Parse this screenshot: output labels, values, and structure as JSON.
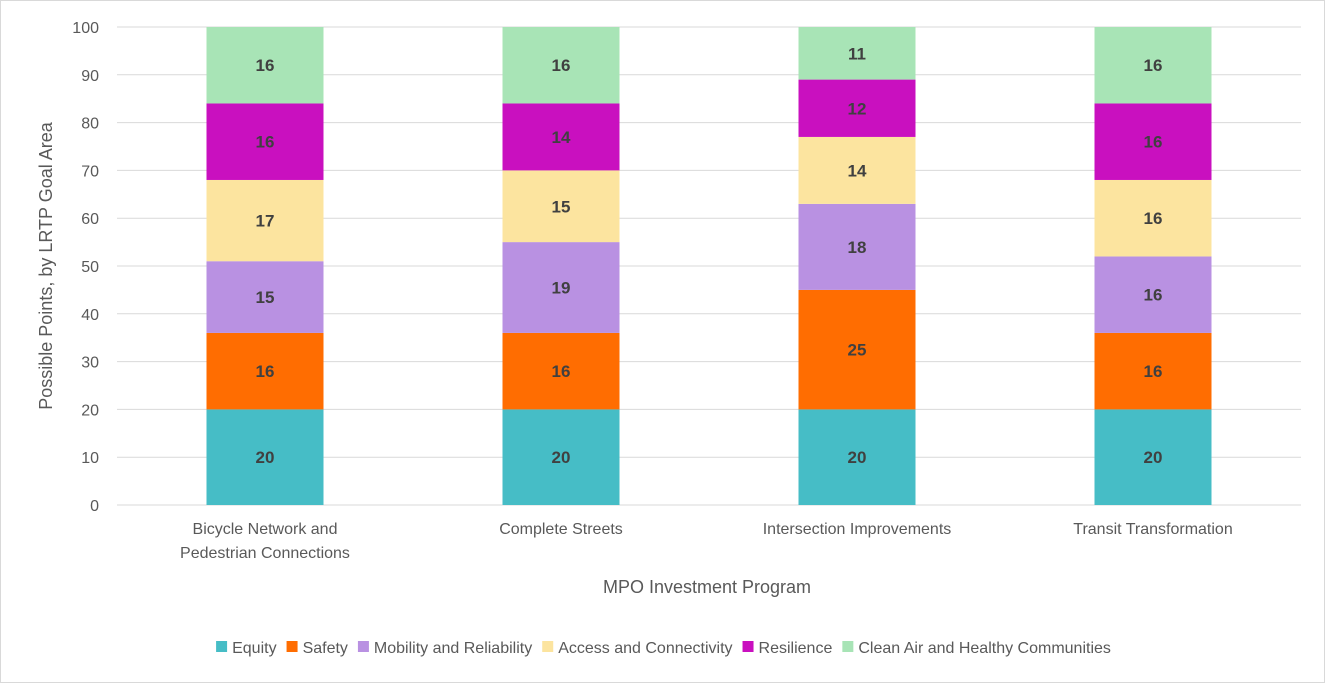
{
  "chart_data": {
    "type": "stacked-bar",
    "title": "",
    "xlabel": "MPO Investment Program",
    "ylabel": "Possible Points, by LRTP Goal Area",
    "ylim": [
      0,
      100
    ],
    "yticks": [
      0,
      10,
      20,
      30,
      40,
      50,
      60,
      70,
      80,
      90,
      100
    ],
    "grid": true,
    "legend_position": "bottom",
    "categories": [
      [
        "Bicycle Network and",
        "Pedestrian Connections"
      ],
      [
        "Complete Streets"
      ],
      [
        "Intersection Improvements"
      ],
      [
        "Transit Transformation"
      ]
    ],
    "series": [
      {
        "name": "Equity",
        "color": "#46BDC6",
        "values": [
          20,
          20,
          20,
          20
        ]
      },
      {
        "name": "Safety",
        "color": "#FF6D01",
        "values": [
          16,
          16,
          25,
          16
        ]
      },
      {
        "name": "Mobility and Reliability",
        "color": "#B991E2",
        "values": [
          15,
          19,
          18,
          16
        ]
      },
      {
        "name": "Access and Connectivity",
        "color": "#FCE49F",
        "values": [
          17,
          15,
          14,
          16
        ]
      },
      {
        "name": "Resilience",
        "color": "#C910BF",
        "values": [
          16,
          14,
          12,
          16
        ]
      },
      {
        "name": "Clean Air and Healthy Communities",
        "color": "#A8E4B6",
        "values": [
          16,
          16,
          11,
          16
        ]
      }
    ]
  }
}
